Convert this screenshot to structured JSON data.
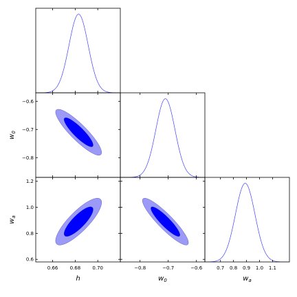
{
  "chart_data": {
    "type": "corner",
    "colors": {
      "line": "#4040ff",
      "contour_inner": "#0000ff",
      "contour_outer": "#9b9bf7"
    },
    "parameters": [
      {
        "key": "h",
        "label_main": "h",
        "label_sub": "",
        "range": [
          0.645,
          0.72
        ],
        "mean": 0.683,
        "sigma": 0.0085,
        "ticks": [
          0.66,
          0.68,
          0.7
        ],
        "tick_labels": [
          "0.66",
          "0.68",
          "0.70"
        ]
      },
      {
        "key": "w0",
        "label_main": "w",
        "label_sub": "0",
        "range": [
          -0.87,
          -0.57
        ],
        "mean": -0.71,
        "sigma": 0.034,
        "ticks": [
          -0.8,
          -0.7,
          -0.6
        ],
        "tick_labels": [
          "−0.8",
          "−0.7",
          "−0.6"
        ]
      },
      {
        "key": "wa",
        "label_main": "w",
        "label_sub": "a",
        "range": [
          0.58,
          1.23
        ],
        "mean": 0.89,
        "sigma": 0.075,
        "ticks": [
          0.6,
          0.8,
          1.0,
          1.2
        ],
        "tick_labels": [
          "0.6",
          "0.8",
          "1.0",
          "1.2"
        ]
      }
    ],
    "wa_diagonal_ticks": [
      0.7,
      0.8,
      0.9,
      1.0,
      1.1
    ],
    "wa_diagonal_tick_labels": [
      "0.7",
      "0.8",
      "0.9",
      "1.0",
      "1.1"
    ],
    "wa_diagonal_range": [
      0.58,
      1.23
    ],
    "correlations": {
      "h-w0": -0.88,
      "h-wa": 0.82,
      "w0-wa": -0.9
    },
    "contour_levels_sigma": [
      1,
      2
    ]
  }
}
